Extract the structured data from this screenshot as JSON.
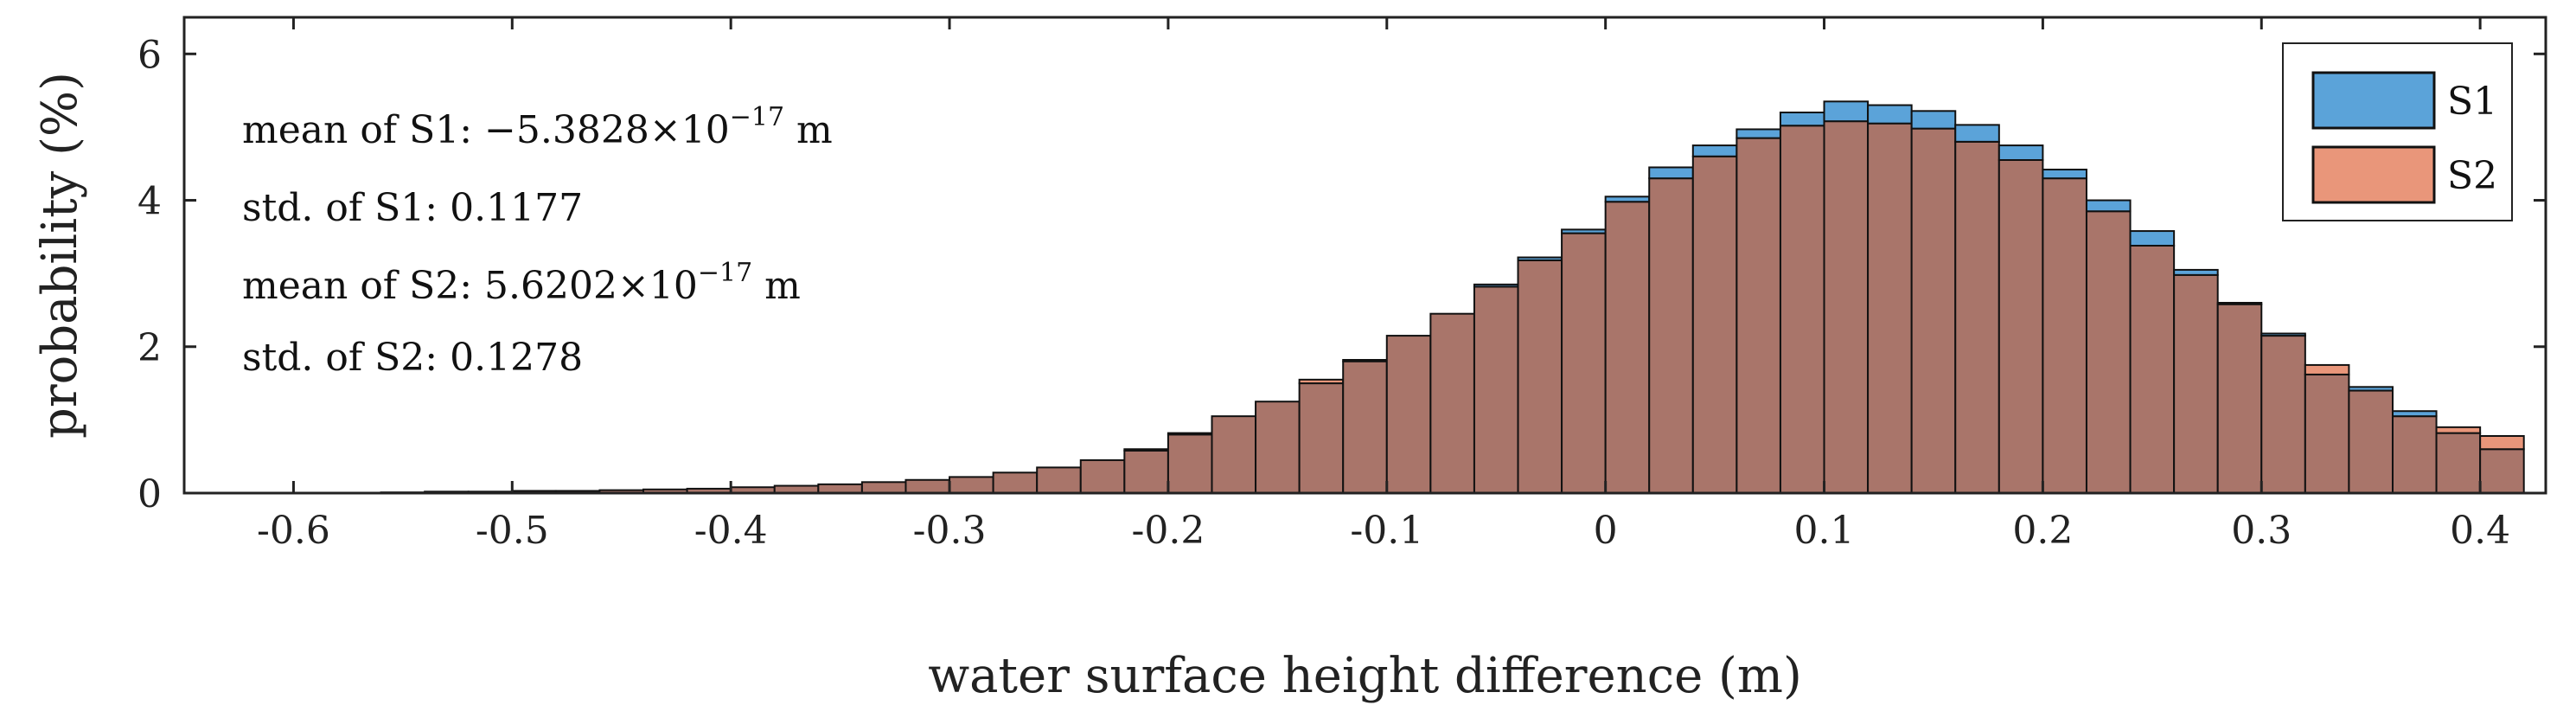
{
  "chart_data": {
    "type": "bar",
    "subtype": "overlapping-histogram",
    "title": "",
    "xlabel": "water surface height difference (m)",
    "ylabel": "probability (%)",
    "xlim": [
      -0.65,
      0.43
    ],
    "ylim": [
      0,
      6.5
    ],
    "xticks": [
      -0.6,
      -0.5,
      -0.4,
      -0.3,
      -0.2,
      -0.1,
      0,
      0.1,
      0.2,
      0.3,
      0.4
    ],
    "xtick_labels": [
      "-0.6",
      "-0.5",
      "-0.4",
      "-0.3",
      "-0.2",
      "-0.1",
      "0",
      "0.1",
      "0.2",
      "0.3",
      "0.4"
    ],
    "yticks": [
      0,
      2,
      4,
      6
    ],
    "ytick_labels": [
      "0",
      "2",
      "4",
      "6"
    ],
    "grid": false,
    "bin_width": 0.02,
    "bin_centers": [
      -0.55,
      -0.53,
      -0.51,
      -0.49,
      -0.47,
      -0.45,
      -0.43,
      -0.41,
      -0.39,
      -0.37,
      -0.35,
      -0.33,
      -0.31,
      -0.29,
      -0.27,
      -0.25,
      -0.23,
      -0.21,
      -0.19,
      -0.17,
      -0.15,
      -0.13,
      -0.11,
      -0.09,
      -0.07,
      -0.05,
      -0.03,
      -0.01,
      0.01,
      0.03,
      0.05,
      0.07,
      0.09,
      0.11,
      0.13,
      0.15,
      0.17,
      0.19,
      0.21,
      0.23,
      0.25,
      0.27,
      0.29,
      0.31,
      0.33,
      0.35,
      0.37,
      0.39,
      0.41
    ],
    "series": [
      {
        "name": "S1",
        "color": "#5ba3d9",
        "values": [
          0.01,
          0.02,
          0.02,
          0.03,
          0.03,
          0.04,
          0.05,
          0.06,
          0.08,
          0.1,
          0.12,
          0.15,
          0.18,
          0.22,
          0.28,
          0.35,
          0.45,
          0.58,
          0.8,
          1.05,
          1.25,
          1.5,
          1.8,
          2.15,
          2.45,
          2.85,
          3.22,
          3.6,
          4.05,
          4.45,
          4.75,
          4.97,
          5.2,
          5.35,
          5.3,
          5.22,
          5.03,
          4.75,
          4.42,
          4.0,
          3.58,
          3.05,
          2.6,
          2.18,
          1.62,
          1.45,
          1.12,
          0.82,
          0.6
        ]
      },
      {
        "name": "S2",
        "color": "#e9967a",
        "values": [
          0.01,
          0.02,
          0.02,
          0.03,
          0.03,
          0.04,
          0.05,
          0.06,
          0.08,
          0.1,
          0.12,
          0.15,
          0.18,
          0.22,
          0.28,
          0.35,
          0.45,
          0.6,
          0.82,
          1.05,
          1.25,
          1.55,
          1.82,
          2.15,
          2.45,
          2.82,
          3.18,
          3.55,
          3.98,
          4.3,
          4.6,
          4.85,
          5.02,
          5.08,
          5.05,
          4.98,
          4.8,
          4.55,
          4.3,
          3.85,
          3.38,
          2.98,
          2.58,
          2.15,
          1.75,
          1.4,
          1.05,
          0.9,
          0.78
        ]
      }
    ],
    "legend": {
      "position": "top-right",
      "entries": [
        "S1",
        "S2"
      ]
    },
    "annotations": [
      {
        "prefix": "mean of S1: ",
        "value": "−5.3828×10",
        "exponent": "−17",
        "unit": " m"
      },
      {
        "prefix": "std. of S1: ",
        "value": "0.1177",
        "exponent": "",
        "unit": ""
      },
      {
        "prefix": "mean of S2: ",
        "value": "5.6202×10",
        "exponent": "−17",
        "unit": " m"
      },
      {
        "prefix": "std. of S2: ",
        "value": "0.1278",
        "exponent": "",
        "unit": ""
      }
    ],
    "overlap_color": "#a9756a"
  }
}
